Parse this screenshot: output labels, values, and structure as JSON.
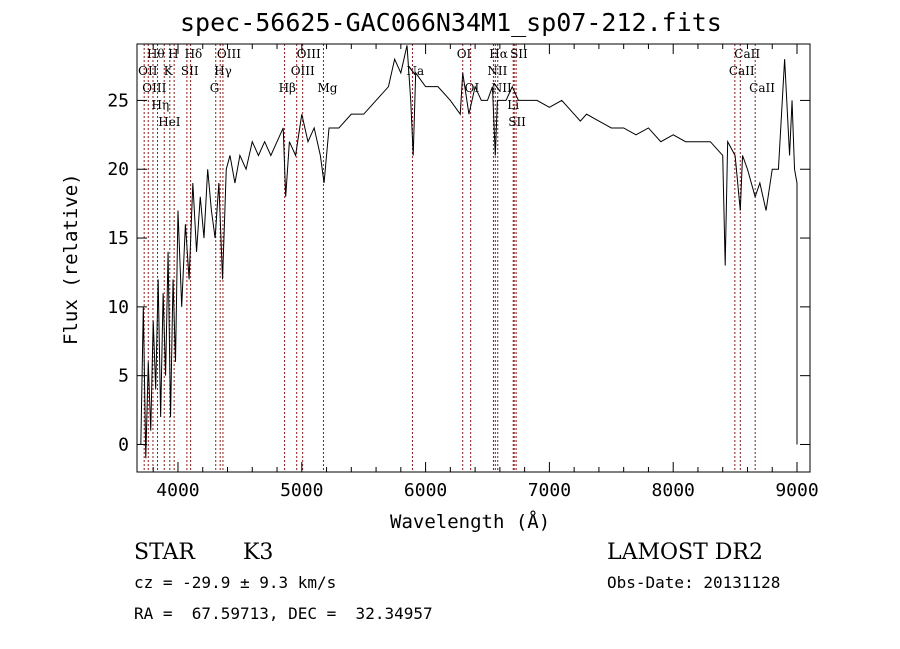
{
  "chart_data": {
    "type": "line",
    "title": "spec-56625-GAC066N34M1_sp07-212.fits",
    "xlabel": "Wavelength (Å)",
    "ylabel": "Flux (relative)",
    "xlim": [
      3669,
      9105
    ],
    "ylim": [
      -2,
      29.1
    ],
    "xticks": [
      4000,
      5000,
      6000,
      7000,
      8000,
      9000
    ],
    "yticks": [
      0,
      5,
      10,
      15,
      20,
      25
    ],
    "grid": false,
    "series": [
      {
        "name": "spectrum",
        "x": [
          3700,
          3720,
          3740,
          3760,
          3780,
          3800,
          3820,
          3840,
          3860,
          3880,
          3900,
          3920,
          3940,
          3960,
          3980,
          4000,
          4030,
          4060,
          4090,
          4120,
          4150,
          4180,
          4210,
          4240,
          4270,
          4300,
          4330,
          4360,
          4390,
          4420,
          4460,
          4500,
          4550,
          4600,
          4650,
          4700,
          4750,
          4800,
          4850,
          4870,
          4900,
          4950,
          5000,
          5050,
          5100,
          5150,
          5180,
          5220,
          5300,
          5400,
          5500,
          5600,
          5700,
          5750,
          5800,
          5850,
          5880,
          5900,
          5920,
          6000,
          6100,
          6200,
          6280,
          6300,
          6350,
          6400,
          6450,
          6500,
          6540,
          6563,
          6580,
          6650,
          6700,
          6750,
          6800,
          6900,
          7000,
          7100,
          7200,
          7250,
          7300,
          7400,
          7500,
          7600,
          7700,
          7800,
          7900,
          8000,
          8100,
          8200,
          8300,
          8400,
          8420,
          8440,
          8500,
          8542,
          8560,
          8600,
          8662,
          8700,
          8750,
          8800,
          8850,
          8900,
          8940,
          8960,
          8980,
          9000,
          9000
        ],
        "y": [
          0,
          10,
          -1,
          6,
          1,
          9,
          4,
          12,
          2,
          11,
          5,
          14,
          2,
          12,
          6,
          17,
          10,
          16,
          12,
          19,
          14,
          18,
          15,
          20,
          17,
          15,
          19,
          12,
          20,
          21,
          19,
          21,
          20,
          22,
          21,
          22,
          21,
          22,
          23,
          18,
          22,
          21,
          24,
          22,
          23,
          21,
          19,
          23,
          23,
          24,
          24,
          25,
          26,
          28,
          27,
          29,
          25,
          21,
          27,
          26,
          26,
          25,
          24,
          27,
          24,
          26,
          25,
          25,
          26,
          21,
          25,
          25,
          26,
          25,
          25,
          25,
          24.5,
          25,
          24,
          23.5,
          24,
          23.5,
          23,
          23,
          22.5,
          23,
          22,
          22.5,
          22,
          22,
          22,
          21,
          13,
          22,
          21,
          17,
          21,
          20,
          18,
          19,
          17,
          20,
          20,
          28,
          21,
          25,
          20,
          19,
          0
        ],
        "color": "#000000"
      }
    ],
    "lines": [
      {
        "name": "OII",
        "wl": 3727,
        "row": 1
      },
      {
        "name": "Hθ",
        "wl": 3798,
        "row": 0
      },
      {
        "name": "OIII",
        "wl": 3760,
        "row": 2
      },
      {
        "name": "Hη",
        "wl": 3835,
        "row": 2
      },
      {
        "name": "HeI",
        "wl": 3889,
        "row": 1
      },
      {
        "name": "K",
        "wl": 3934,
        "row": 0
      },
      {
        "name": "H",
        "wl": 3969,
        "row": 2
      },
      {
        "name": "SII",
        "wl": 4072,
        "row": 1
      },
      {
        "name": "Hδ",
        "wl": 4102,
        "row": 0
      },
      {
        "name": "G",
        "wl": 4305,
        "row": 2
      },
      {
        "name": "Hγ",
        "wl": 4341,
        "row": 1
      },
      {
        "name": "OIII",
        "wl": 4363,
        "row": 0
      },
      {
        "name": "Hβ",
        "wl": 4861,
        "row": 2
      },
      {
        "name": "OIII",
        "wl": 4959,
        "row": 1
      },
      {
        "name": "OIII",
        "wl": 5007,
        "row": 0
      },
      {
        "name": "Mg",
        "wl": 5175,
        "row": 2
      },
      {
        "name": "Na",
        "wl": 5894,
        "row": 1
      },
      {
        "name": "OI",
        "wl": 6300,
        "row": 0
      },
      {
        "name": "OI",
        "wl": 6364,
        "row": 2
      },
      {
        "name": "NII",
        "wl": 6548,
        "row": 1
      },
      {
        "name": "Hα",
        "wl": 6563,
        "row": 0
      },
      {
        "name": "NII",
        "wl": 6583,
        "row": 2
      },
      {
        "name": "Li",
        "wl": 6708,
        "row": 1
      },
      {
        "name": "SII",
        "wl": 6716,
        "row": 0
      },
      {
        "name": "SII",
        "wl": 6731,
        "row": 2
      },
      {
        "name": "CaII",
        "wl": 8498,
        "row": 1
      },
      {
        "name": "CaII",
        "wl": 8542,
        "row": 0
      },
      {
        "name": "CaII",
        "wl": 8662,
        "row": 2
      }
    ],
    "line_color": "#8b1a1a"
  },
  "info": {
    "class": "STAR",
    "subclass": "K3",
    "survey": "LAMOST DR2",
    "cz": "cz = -29.9 ± 9.3 km/s",
    "obsdate": "Obs-Date: 20131128",
    "radec": "RA =  67.59713, DEC =  32.34957"
  }
}
